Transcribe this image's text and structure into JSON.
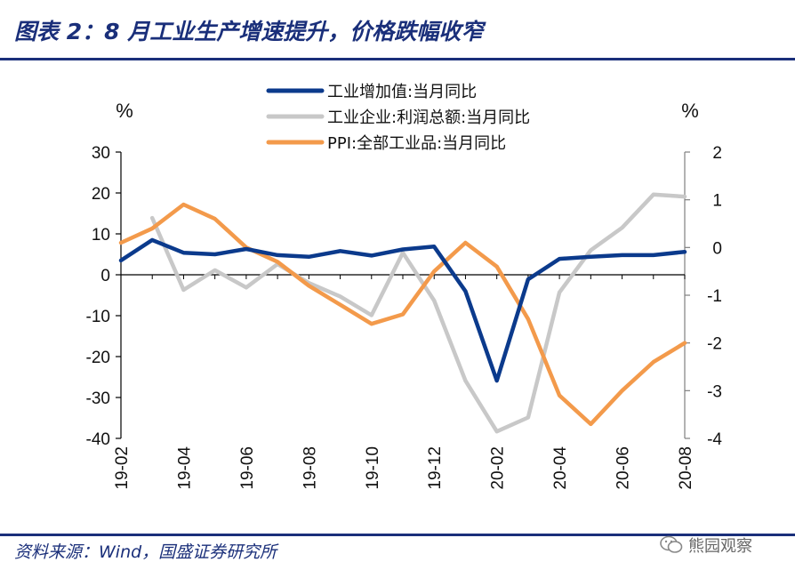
{
  "title": "图表 2：8 月工业生产增速提升，价格跌幅收窄",
  "footer": {
    "source": "资料来源：Wind，国盛证券研究所",
    "watermark": "熊园观察",
    "watermark_icon": "wechat-icon"
  },
  "colors": {
    "brand": "#1a2f7a",
    "industrial_output": "#0b3a8c",
    "profits": "#c8c8c8",
    "ppi": "#f39a4b",
    "axis": "#7f7f7f"
  },
  "chart_data": {
    "type": "line",
    "categories": [
      "19-02",
      "19-03",
      "19-04",
      "19-05",
      "19-06",
      "19-07",
      "19-08",
      "19-09",
      "19-10",
      "19-11",
      "19-12",
      "20-01",
      "20-02",
      "20-03",
      "20-04",
      "20-05",
      "20-06",
      "20-07",
      "20-08"
    ],
    "x_tick_labels": [
      "19-02",
      "19-04",
      "19-06",
      "19-08",
      "19-10",
      "19-12",
      "20-02",
      "20-04",
      "20-06",
      "20-08"
    ],
    "left_axis": {
      "unit": "%",
      "ylim": [
        -40,
        30
      ],
      "ticks": [
        30,
        20,
        10,
        0,
        -10,
        -20,
        -30,
        -40
      ]
    },
    "right_axis": {
      "unit": "%",
      "ylim": [
        -4,
        2
      ],
      "ticks": [
        2,
        1,
        0,
        -1,
        -2,
        -3,
        -4
      ]
    },
    "legend_position": "top-center",
    "grid": false,
    "series": [
      {
        "name": "工业增加值:当月同比",
        "axis": "left",
        "color": "#0b3a8c",
        "values": [
          3.5,
          8.5,
          5.4,
          5.0,
          6.3,
          4.8,
          4.4,
          5.8,
          4.7,
          6.2,
          6.9,
          -4.0,
          -25.9,
          -1.1,
          3.9,
          4.4,
          4.8,
          4.8,
          5.6
        ]
      },
      {
        "name": "工业企业:利润总额:当月同比",
        "axis": "left",
        "color": "#c8c8c8",
        "values": [
          null,
          13.9,
          -3.7,
          1.1,
          -3.1,
          2.6,
          -2.0,
          -5.3,
          -9.9,
          5.4,
          -6.3,
          -25.9,
          -38.3,
          -34.9,
          -4.3,
          6.0,
          11.5,
          19.6,
          19.1
        ]
      },
      {
        "name": "PPI:全部工业品:当月同比",
        "axis": "right",
        "color": "#f39a4b",
        "values": [
          0.1,
          0.4,
          0.9,
          0.6,
          0.0,
          -0.3,
          -0.8,
          -1.2,
          -1.6,
          -1.4,
          -0.5,
          0.1,
          -0.4,
          -1.5,
          -3.1,
          -3.7,
          -3.0,
          -2.4,
          -2.0
        ]
      }
    ]
  }
}
